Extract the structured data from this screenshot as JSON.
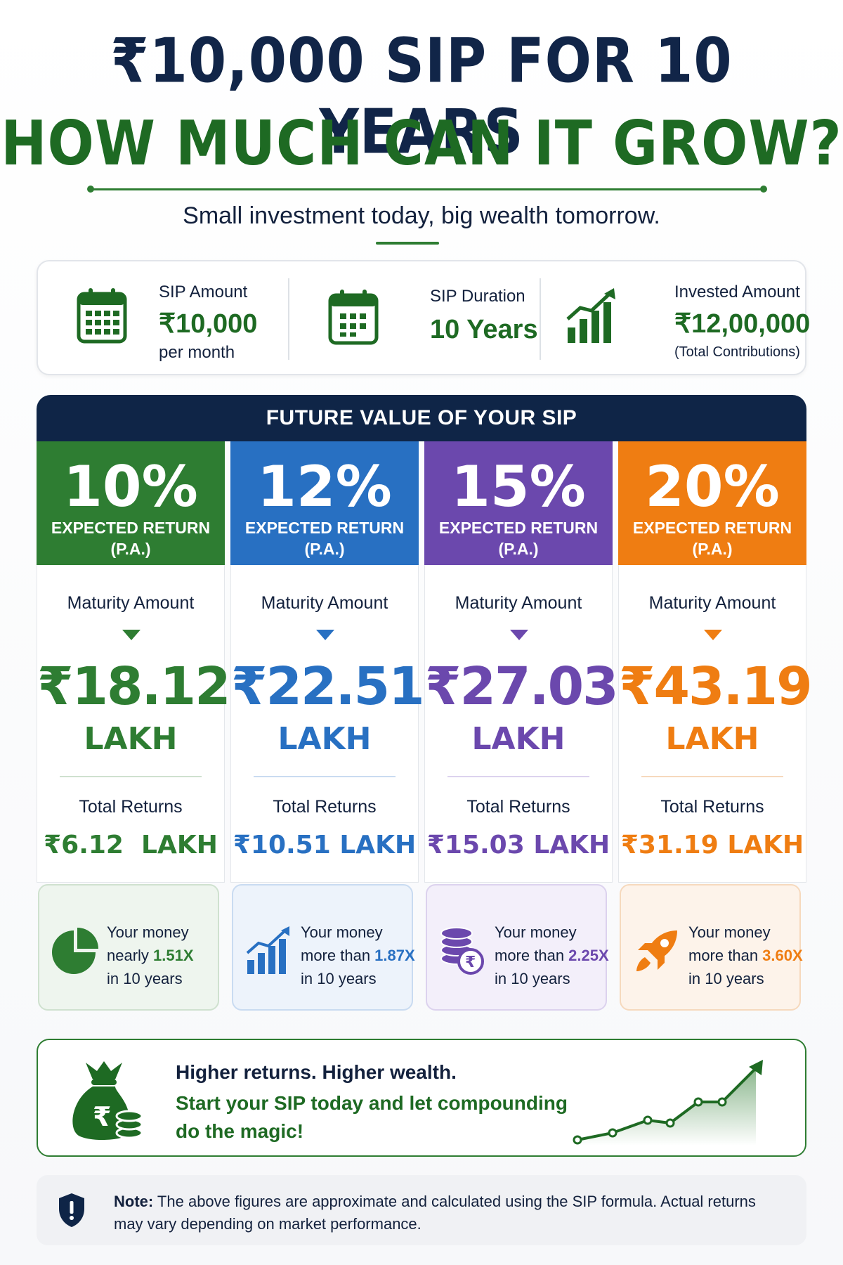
{
  "title": {
    "line1": "₹10,000 SIP FOR 10 YEARS",
    "line2": "HOW MUCH CAN IT GROW?",
    "subtitle": "Small investment today, big wealth tomorrow."
  },
  "summary": [
    {
      "icon": "calendar-icon",
      "label": "SIP Amount",
      "value": "₹10,000",
      "note": "per month"
    },
    {
      "icon": "calendar-icon",
      "label": "SIP Duration",
      "value": "10 Years",
      "note": ""
    },
    {
      "icon": "bar-chart-growth-icon",
      "label": "Invested Amount",
      "value": "₹12,00,000",
      "note": "(Total Contributions)"
    }
  ],
  "future_value": {
    "heading": "FUTURE VALUE OF YOUR SIP",
    "columns": [
      {
        "rate": "10%",
        "expected": "EXPECTED RETURN",
        "pa": "(P.A.)",
        "maturity_label": "Maturity Amount",
        "maturity_value": "₹18.12",
        "maturity_unit": "LAKH",
        "returns_label": "Total Returns",
        "returns_value": "₹6.12  LAKH",
        "mult_pre": "Your money",
        "mult_mid": "nearly ",
        "mult_x": "1.51X",
        "mult_post": "in 10 years",
        "icon": "pie-chart-icon",
        "color": "#2e7d32",
        "light": "#eef5ee",
        "border": "#cfe1cf"
      },
      {
        "rate": "12%",
        "expected": "EXPECTED RETURN",
        "pa": "(P.A.)",
        "maturity_label": "Maturity Amount",
        "maturity_value": "₹22.51",
        "maturity_unit": "LAKH",
        "returns_label": "Total Returns",
        "returns_value": "₹10.51 LAKH",
        "mult_pre": "Your money",
        "mult_mid": "more than ",
        "mult_x": "1.87X",
        "mult_post": "in 10 years",
        "icon": "bar-chart-growth-icon",
        "color": "#2870c2",
        "light": "#edf3fb",
        "border": "#c9dbf1"
      },
      {
        "rate": "15%",
        "expected": "EXPECTED RETURN",
        "pa": "(P.A.)",
        "maturity_label": "Maturity Amount",
        "maturity_value": "₹27.03",
        "maturity_unit": "LAKH",
        "returns_label": "Total Returns",
        "returns_value": "₹15.03 LAKH",
        "mult_pre": "Your money",
        "mult_mid": "more than ",
        "mult_x": "2.25X",
        "mult_post": "in 10 years",
        "icon": "coin-stack-icon",
        "color": "#6b48ad",
        "light": "#f3effa",
        "border": "#dcd2ee"
      },
      {
        "rate": "20%",
        "expected": "EXPECTED RETURN",
        "pa": "(P.A.)",
        "maturity_label": "Maturity Amount",
        "maturity_value": "₹43.19",
        "maturity_unit": "LAKH",
        "returns_label": "Total Returns",
        "returns_value": "₹31.19 LAKH",
        "mult_pre": "Your money",
        "mult_mid": "more than ",
        "mult_x": "3.60X",
        "mult_post": "in 10 years",
        "icon": "rocket-icon",
        "color": "#ef7d12",
        "light": "#fdf3ea",
        "border": "#f6d9bd"
      }
    ]
  },
  "cta": {
    "line1": "Higher returns. Higher wealth.",
    "line2": "Start your SIP today and let compounding do the magic!",
    "icon": "money-bag-icon",
    "trend_icon": "growth-line-icon"
  },
  "note": {
    "label": "Note:",
    "text": " The above figures are approximate and calculated using the SIP formula. Actual returns may vary depending on market performance.",
    "icon": "shield-alert-icon"
  },
  "colors": {
    "navy": "#0f2547",
    "green": "#2e7d32",
    "blue": "#2870c2",
    "purple": "#6b48ad",
    "orange": "#ef7d12"
  }
}
